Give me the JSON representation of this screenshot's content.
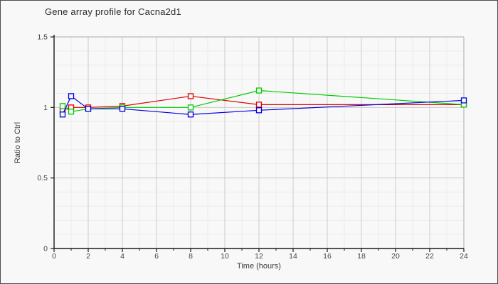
{
  "window": {
    "title": "Gene array profile for Cacna2d1"
  },
  "chart_data": {
    "type": "line",
    "title": "Gene array profile for Cacna2d1",
    "xlabel": "Time (hours)",
    "ylabel": "Ratio to Ctrl",
    "x": [
      0.5,
      1,
      2,
      4,
      8,
      12,
      24
    ],
    "series": [
      {
        "name": "red-series",
        "color": "#dd0000",
        "values": [
          0.98,
          1.0,
          1.0,
          1.01,
          1.08,
          1.02,
          1.02
        ]
      },
      {
        "name": "green-series",
        "color": "#00cc00",
        "values": [
          1.01,
          0.97,
          0.99,
          1.0,
          1.0,
          1.12,
          1.02
        ]
      },
      {
        "name": "blue-series",
        "color": "#0000dd",
        "values": [
          0.95,
          1.08,
          0.99,
          0.99,
          0.95,
          0.98,
          1.05
        ]
      }
    ],
    "xlim": [
      0,
      24
    ],
    "ylim": [
      0,
      1.5
    ],
    "x_tick_labels": [
      "0",
      "2",
      "4",
      "6",
      "8",
      "10",
      "12",
      "14",
      "16",
      "18",
      "20",
      "22",
      "24"
    ],
    "x_major_ticks": [
      0,
      2,
      4,
      6,
      8,
      10,
      12,
      14,
      16,
      18,
      20,
      22,
      24
    ],
    "x_minor_step": 1,
    "y_tick_labels": [
      "0",
      "0.5",
      "1",
      "1.5"
    ],
    "y_major_ticks": [
      0,
      0.5,
      1,
      1.5
    ],
    "y_minor_step": 0.1,
    "marker": "open-square",
    "grid": "minor-and-major",
    "legend": "none"
  },
  "colors": {
    "background": "#f8f8f8",
    "frame_border": "#4d4d4d",
    "axis_line": "#1a1a1a",
    "grid_minor": "#ebebeb",
    "grid_major": "#cccccc",
    "plot_border": "#b8b8b8",
    "tick_text": "#444444",
    "title_text": "#2b2b2b"
  }
}
